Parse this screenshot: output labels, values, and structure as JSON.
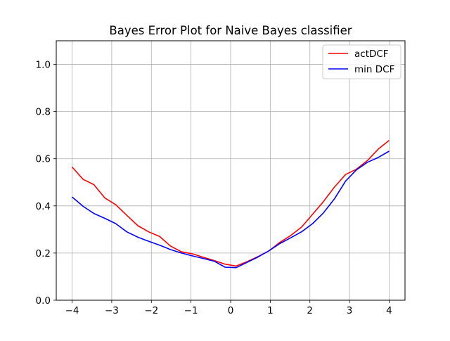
{
  "chart_data": {
    "type": "line",
    "title": "Bayes Error Plot for Naive Bayes classifier",
    "xlabel": "",
    "ylabel": "",
    "xlim": [
      -4.4,
      4.4
    ],
    "ylim": [
      0.0,
      1.1
    ],
    "xticks": [
      -4,
      -3,
      -2,
      -1,
      0,
      1,
      2,
      3,
      4
    ],
    "yticks": [
      0.0,
      0.2,
      0.4,
      0.6,
      0.8,
      1.0
    ],
    "xtick_labels": [
      "−4",
      "−3",
      "−2",
      "−1",
      "0",
      "1",
      "2",
      "3",
      "4"
    ],
    "ytick_labels": [
      "0.0",
      "0.2",
      "0.4",
      "0.6",
      "0.8",
      "1.0"
    ],
    "grid": true,
    "legend_position": "top-right",
    "x": [
      -4.0,
      -3.72,
      -3.45,
      -3.17,
      -2.9,
      -2.62,
      -2.34,
      -2.07,
      -1.79,
      -1.52,
      -1.24,
      -0.97,
      -0.69,
      -0.41,
      -0.14,
      0.14,
      0.41,
      0.69,
      0.97,
      1.24,
      1.52,
      1.79,
      2.07,
      2.34,
      2.62,
      2.9,
      3.17,
      3.45,
      3.72,
      4.0
    ],
    "series": [
      {
        "name": "actDCF",
        "color": "#ff0000",
        "values": [
          0.565,
          0.512,
          0.49,
          0.433,
          0.405,
          0.36,
          0.316,
          0.29,
          0.27,
          0.23,
          0.205,
          0.197,
          0.182,
          0.168,
          0.153,
          0.145,
          0.163,
          0.185,
          0.21,
          0.245,
          0.275,
          0.31,
          0.365,
          0.418,
          0.48,
          0.533,
          0.555,
          0.592,
          0.64,
          0.678
        ]
      },
      {
        "name": "min DCF",
        "color": "#0000ff",
        "values": [
          0.438,
          0.398,
          0.368,
          0.347,
          0.325,
          0.29,
          0.267,
          0.25,
          0.233,
          0.215,
          0.2,
          0.188,
          0.177,
          0.165,
          0.14,
          0.138,
          0.16,
          0.183,
          0.21,
          0.24,
          0.265,
          0.29,
          0.325,
          0.37,
          0.43,
          0.505,
          0.552,
          0.585,
          0.605,
          0.632
        ]
      }
    ]
  }
}
